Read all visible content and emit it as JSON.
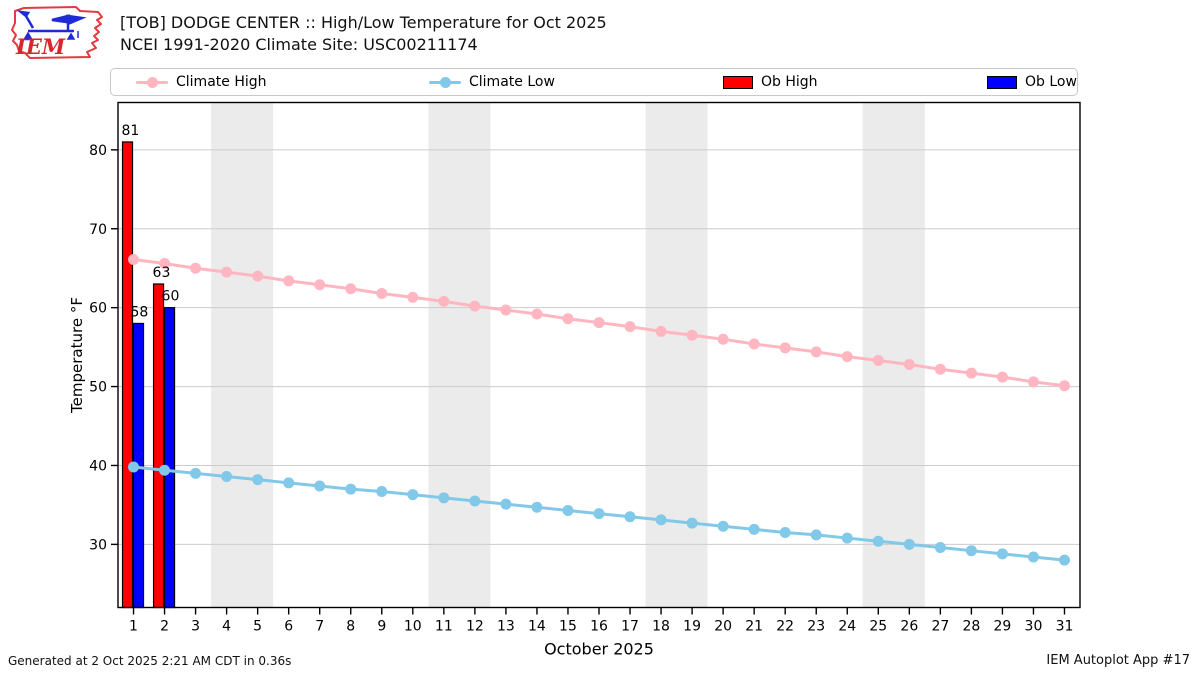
{
  "header": {
    "title": "[TOB] DODGE CENTER :: High/Low Temperature for Oct 2025",
    "subtitle": "NCEI 1991-2020 Climate Site: USC00211174",
    "logo_text": "IEM"
  },
  "legend": {
    "items": [
      {
        "label": "Climate High",
        "marker": "line-dot",
        "color": "#ffb6c1"
      },
      {
        "label": "Climate Low",
        "marker": "line-dot",
        "color": "#82c8e8"
      },
      {
        "label": "Ob High",
        "marker": "patch",
        "color": "#ff0000"
      },
      {
        "label": "Ob Low",
        "marker": "patch",
        "color": "#0000ff"
      }
    ]
  },
  "chart_data": {
    "type": "line",
    "title": "[TOB] DODGE CENTER :: High/Low Temperature for Oct 2025",
    "subtitle": "NCEI 1991-2020 Climate Site: USC00211174",
    "xlabel": "October 2025",
    "ylabel": "Temperature °F",
    "ylim": [
      22,
      86
    ],
    "yticks": [
      30,
      40,
      50,
      60,
      70,
      80
    ],
    "x": [
      1,
      2,
      3,
      4,
      5,
      6,
      7,
      8,
      9,
      10,
      11,
      12,
      13,
      14,
      15,
      16,
      17,
      18,
      19,
      20,
      21,
      22,
      23,
      24,
      25,
      26,
      27,
      28,
      29,
      30,
      31
    ],
    "grid": "horizontal",
    "legend_position": "top",
    "weekend_bands": [
      [
        3.5,
        5.5
      ],
      [
        10.5,
        12.5
      ],
      [
        17.5,
        19.5
      ],
      [
        24.5,
        26.5
      ]
    ],
    "band_color": "#ebebeb",
    "grid_color": "#cccccc",
    "series": [
      {
        "name": "Climate High",
        "type": "line",
        "color": "#ffb6c1",
        "values": [
          66.1,
          65.6,
          65.0,
          64.5,
          64.0,
          63.4,
          62.9,
          62.4,
          61.8,
          61.3,
          60.8,
          60.2,
          59.7,
          59.2,
          58.6,
          58.1,
          57.6,
          57.0,
          56.5,
          56.0,
          55.4,
          54.9,
          54.4,
          53.8,
          53.3,
          52.8,
          52.2,
          51.7,
          51.2,
          50.6,
          50.1
        ]
      },
      {
        "name": "Climate Low",
        "type": "line",
        "color": "#82c8e8",
        "values": [
          39.8,
          39.4,
          39.0,
          38.6,
          38.2,
          37.8,
          37.4,
          37.0,
          36.7,
          36.3,
          35.9,
          35.5,
          35.1,
          34.7,
          34.3,
          33.9,
          33.5,
          33.1,
          32.7,
          32.3,
          31.9,
          31.5,
          31.2,
          30.8,
          30.4,
          30.0,
          29.6,
          29.2,
          28.8,
          28.4,
          28.0
        ]
      },
      {
        "name": "Ob High",
        "type": "bar",
        "color": "#ff0000",
        "points": [
          {
            "day": 1,
            "value": 81
          },
          {
            "day": 2,
            "value": 63
          }
        ]
      },
      {
        "name": "Ob Low",
        "type": "bar",
        "color": "#0000ff",
        "points": [
          {
            "day": 1,
            "value": 58
          },
          {
            "day": 2,
            "value": 60
          }
        ]
      }
    ]
  },
  "footer": {
    "generated": "Generated at 2 Oct 2025 2:21 AM CDT in 0.36s",
    "app": "IEM Autoplot App #17"
  }
}
